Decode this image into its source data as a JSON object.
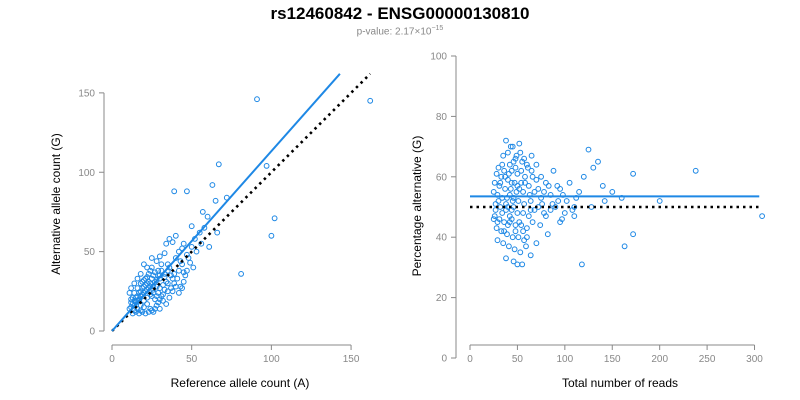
{
  "title": "rs12460842 - ENSG00000130810",
  "subtitle": {
    "prefix": "p-value: ",
    "mantissa": "2.17",
    "times": "×10",
    "exponent": "−15"
  },
  "colors": {
    "points": "#1e88e5",
    "fit_line": "#1e88e5",
    "reference_line": "#000000",
    "axis": "#888888"
  },
  "chart_data": [
    {
      "type": "scatter",
      "xlabel": "Reference allele count (A)",
      "ylabel": "Alternative allele count (G)",
      "xlim": [
        0,
        160
      ],
      "ylim": [
        0,
        160
      ],
      "xticks": [
        0,
        50,
        100,
        150
      ],
      "yticks": [
        0,
        50,
        100,
        150
      ],
      "fit_line": {
        "x": [
          0,
          143
        ],
        "y": [
          0,
          162
        ]
      },
      "reference_line": {
        "x": [
          0,
          162
        ],
        "y": [
          0,
          162
        ]
      },
      "points": [
        [
          91,
          146
        ],
        [
          162,
          145
        ],
        [
          67,
          105
        ],
        [
          97,
          104
        ],
        [
          63,
          92
        ],
        [
          39,
          88
        ],
        [
          47,
          88
        ],
        [
          102,
          71
        ],
        [
          100,
          60
        ],
        [
          81,
          36
        ],
        [
          60,
          72
        ],
        [
          72,
          84
        ],
        [
          65,
          82
        ],
        [
          57,
          75
        ],
        [
          55,
          62
        ],
        [
          58,
          65
        ],
        [
          50,
          66
        ],
        [
          45,
          55
        ],
        [
          52,
          58
        ],
        [
          48,
          46
        ],
        [
          61,
          53
        ],
        [
          66,
          62
        ],
        [
          44,
          52
        ],
        [
          40,
          60
        ],
        [
          36,
          58
        ],
        [
          38,
          56
        ],
        [
          34,
          55
        ],
        [
          42,
          50
        ],
        [
          47,
          48
        ],
        [
          43,
          44
        ],
        [
          33,
          49
        ],
        [
          30,
          47
        ],
        [
          31,
          42
        ],
        [
          35,
          42
        ],
        [
          28,
          44
        ],
        [
          25,
          46
        ],
        [
          40,
          46
        ],
        [
          44,
          42
        ],
        [
          36,
          40
        ],
        [
          29,
          38
        ],
        [
          39,
          36
        ],
        [
          42,
          38
        ],
        [
          45,
          37
        ],
        [
          33,
          34
        ],
        [
          30,
          33
        ],
        [
          35,
          30
        ],
        [
          38,
          33
        ],
        [
          26,
          35
        ],
        [
          24,
          38
        ],
        [
          22,
          40
        ],
        [
          20,
          42
        ],
        [
          18,
          36
        ],
        [
          16,
          33
        ],
        [
          14,
          30
        ],
        [
          12,
          27
        ],
        [
          11,
          24
        ],
        [
          13,
          21
        ],
        [
          15,
          18
        ],
        [
          12,
          15
        ],
        [
          14,
          13
        ],
        [
          16,
          14
        ],
        [
          18,
          16
        ],
        [
          20,
          19
        ],
        [
          22,
          21
        ],
        [
          24,
          23
        ],
        [
          26,
          26
        ],
        [
          28,
          28
        ],
        [
          30,
          27
        ],
        [
          32,
          29
        ],
        [
          34,
          31
        ],
        [
          17,
          24
        ],
        [
          19,
          27
        ],
        [
          21,
          29
        ],
        [
          23,
          31
        ],
        [
          25,
          33
        ],
        [
          27,
          31
        ],
        [
          29,
          24
        ],
        [
          31,
          22
        ],
        [
          33,
          26
        ],
        [
          35,
          25
        ],
        [
          15,
          21
        ],
        [
          13,
          17
        ],
        [
          11,
          14
        ],
        [
          17,
          20
        ],
        [
          19,
          23
        ],
        [
          21,
          25
        ],
        [
          23,
          27
        ],
        [
          25,
          22
        ],
        [
          27,
          20
        ],
        [
          29,
          18
        ],
        [
          18,
          13
        ],
        [
          20,
          15
        ],
        [
          22,
          17
        ],
        [
          24,
          14
        ],
        [
          26,
          12
        ],
        [
          28,
          16
        ],
        [
          30,
          14
        ],
        [
          32,
          19
        ],
        [
          34,
          17
        ],
        [
          36,
          21
        ],
        [
          12,
          20
        ],
        [
          14,
          24
        ],
        [
          16,
          27
        ],
        [
          18,
          30
        ],
        [
          20,
          32
        ],
        [
          22,
          34
        ],
        [
          24,
          30
        ],
        [
          26,
          28
        ],
        [
          28,
          32
        ],
        [
          30,
          35
        ],
        [
          37,
          27
        ],
        [
          39,
          30
        ],
        [
          41,
          33
        ],
        [
          43,
          28
        ],
        [
          45,
          31
        ],
        [
          38,
          25
        ],
        [
          40,
          28
        ],
        [
          42,
          24
        ],
        [
          44,
          27
        ],
        [
          46,
          35
        ],
        [
          15,
          12
        ],
        [
          17,
          11
        ],
        [
          19,
          12
        ],
        [
          21,
          11
        ],
        [
          13,
          11
        ],
        [
          23,
          12
        ],
        [
          25,
          13
        ],
        [
          27,
          14
        ],
        [
          14,
          16
        ],
        [
          16,
          19
        ],
        [
          50,
          53
        ],
        [
          53,
          50
        ],
        [
          49,
          43
        ],
        [
          56,
          55
        ],
        [
          51,
          40
        ],
        [
          47,
          38
        ],
        [
          18,
          22
        ],
        [
          20,
          24
        ],
        [
          22,
          26
        ],
        [
          24,
          28
        ],
        [
          26,
          24
        ],
        [
          28,
          22
        ],
        [
          30,
          20
        ],
        [
          32,
          23
        ],
        [
          12,
          18
        ],
        [
          14,
          19
        ],
        [
          16,
          22
        ],
        [
          18,
          25
        ],
        [
          20,
          28
        ],
        [
          22,
          30
        ],
        [
          25,
          40
        ],
        [
          27,
          37
        ],
        [
          29,
          35
        ],
        [
          31,
          38
        ],
        [
          33,
          36
        ],
        [
          35,
          38
        ],
        [
          37,
          35
        ],
        [
          23,
          36
        ],
        [
          21,
          33
        ],
        [
          19,
          31
        ]
      ]
    },
    {
      "type": "scatter",
      "xlabel": "Total number of reads",
      "ylabel": "Percentage alternative (G)",
      "xlim": [
        0,
        310
      ],
      "ylim": [
        0,
        100
      ],
      "xticks": [
        0,
        50,
        100,
        150,
        200,
        250,
        300
      ],
      "yticks": [
        0,
        20,
        40,
        60,
        80,
        100
      ],
      "fit_line": {
        "x": [
          0,
          305
        ],
        "y": [
          53.5,
          53.5
        ]
      },
      "reference_line": {
        "x": [
          0,
          305
        ],
        "y": [
          50,
          50
        ]
      },
      "points": [
        [
          38,
          72
        ],
        [
          45,
          70
        ],
        [
          52,
          71
        ],
        [
          40,
          68
        ],
        [
          35,
          67
        ],
        [
          48,
          66
        ],
        [
          55,
          65
        ],
        [
          42,
          64
        ],
        [
          60,
          64
        ],
        [
          30,
          63
        ],
        [
          36,
          62
        ],
        [
          44,
          62
        ],
        [
          50,
          61
        ],
        [
          58,
          60
        ],
        [
          65,
          62
        ],
        [
          28,
          61
        ],
        [
          33,
          60
        ],
        [
          40,
          59
        ],
        [
          47,
          58
        ],
        [
          54,
          58
        ],
        [
          62,
          57
        ],
        [
          70,
          59
        ],
        [
          26,
          58
        ],
        [
          31,
          57
        ],
        [
          37,
          56
        ],
        [
          43,
          56
        ],
        [
          49,
          55
        ],
        [
          56,
          55
        ],
        [
          63,
          54
        ],
        [
          72,
          56
        ],
        [
          80,
          58
        ],
        [
          25,
          55
        ],
        [
          29,
          54
        ],
        [
          34,
          53
        ],
        [
          39,
          53
        ],
        [
          45,
          52
        ],
        [
          51,
          52
        ],
        [
          57,
          51
        ],
        [
          64,
          52
        ],
        [
          75,
          53
        ],
        [
          85,
          54
        ],
        [
          27,
          51
        ],
        [
          32,
          50
        ],
        [
          38,
          49
        ],
        [
          44,
          49
        ],
        [
          50,
          48
        ],
        [
          56,
          48
        ],
        [
          62,
          47
        ],
        [
          68,
          49
        ],
        [
          78,
          48
        ],
        [
          90,
          50
        ],
        [
          26,
          47
        ],
        [
          31,
          46
        ],
        [
          36,
          45
        ],
        [
          42,
          45
        ],
        [
          48,
          44
        ],
        [
          54,
          44
        ],
        [
          60,
          43
        ],
        [
          66,
          45
        ],
        [
          74,
          44
        ],
        [
          28,
          43
        ],
        [
          33,
          42
        ],
        [
          39,
          41
        ],
        [
          45,
          40
        ],
        [
          51,
          40
        ],
        [
          57,
          39
        ],
        [
          29,
          39
        ],
        [
          35,
          38
        ],
        [
          41,
          37
        ],
        [
          47,
          36
        ],
        [
          53,
          35
        ],
        [
          59,
          37
        ],
        [
          38,
          33
        ],
        [
          46,
          32
        ],
        [
          55,
          31
        ],
        [
          50,
          31
        ],
        [
          64,
          34
        ],
        [
          70,
          38
        ],
        [
          82,
          41
        ],
        [
          95,
          45
        ],
        [
          100,
          48
        ],
        [
          110,
          50
        ],
        [
          95,
          56
        ],
        [
          105,
          58
        ],
        [
          115,
          55
        ],
        [
          120,
          60
        ],
        [
          130,
          63
        ],
        [
          125,
          69
        ],
        [
          135,
          65
        ],
        [
          140,
          57
        ],
        [
          150,
          55
        ],
        [
          160,
          53
        ],
        [
          110,
          47
        ],
        [
          118,
          31
        ],
        [
          128,
          50
        ],
        [
          142,
          52
        ],
        [
          163,
          37
        ],
        [
          172,
          41
        ],
        [
          172,
          61
        ],
        [
          200,
          52
        ],
        [
          238,
          62
        ],
        [
          308,
          47
        ],
        [
          88,
          62
        ],
        [
          92,
          57
        ],
        [
          98,
          54
        ],
        [
          102,
          52
        ],
        [
          85,
          49
        ],
        [
          80,
          47
        ],
        [
          76,
          51
        ],
        [
          72,
          50
        ],
        [
          68,
          55
        ],
        [
          66,
          60
        ],
        [
          61,
          63
        ],
        [
          57,
          66
        ],
        [
          53,
          68
        ],
        [
          49,
          67
        ],
        [
          43,
          70
        ],
        [
          46,
          65
        ],
        [
          41,
          61
        ],
        [
          37,
          60
        ],
        [
          34,
          64
        ],
        [
          32,
          58
        ],
        [
          30,
          52
        ],
        [
          27,
          49
        ],
        [
          25,
          46
        ],
        [
          29,
          45
        ],
        [
          34,
          48
        ],
        [
          40,
          50
        ],
        [
          46,
          53
        ],
        [
          52,
          56
        ],
        [
          58,
          58
        ],
        [
          64,
          49
        ],
        [
          44,
          46
        ],
        [
          48,
          42
        ],
        [
          52,
          45
        ],
        [
          56,
          42
        ],
        [
          60,
          40
        ],
        [
          40,
          44
        ],
        [
          36,
          42
        ],
        [
          42,
          47
        ],
        [
          38,
          51
        ],
        [
          50,
          57
        ],
        [
          54,
          62
        ],
        [
          48,
          63
        ],
        [
          44,
          58
        ],
        [
          42,
          54
        ],
        [
          46,
          50
        ],
        [
          65,
          67
        ],
        [
          70,
          64
        ],
        [
          75,
          60
        ],
        [
          78,
          55
        ],
        [
          83,
          57
        ],
        [
          87,
          51
        ],
        [
          93,
          52
        ],
        [
          97,
          46
        ],
        [
          108,
          49
        ],
        [
          112,
          53
        ]
      ]
    }
  ]
}
